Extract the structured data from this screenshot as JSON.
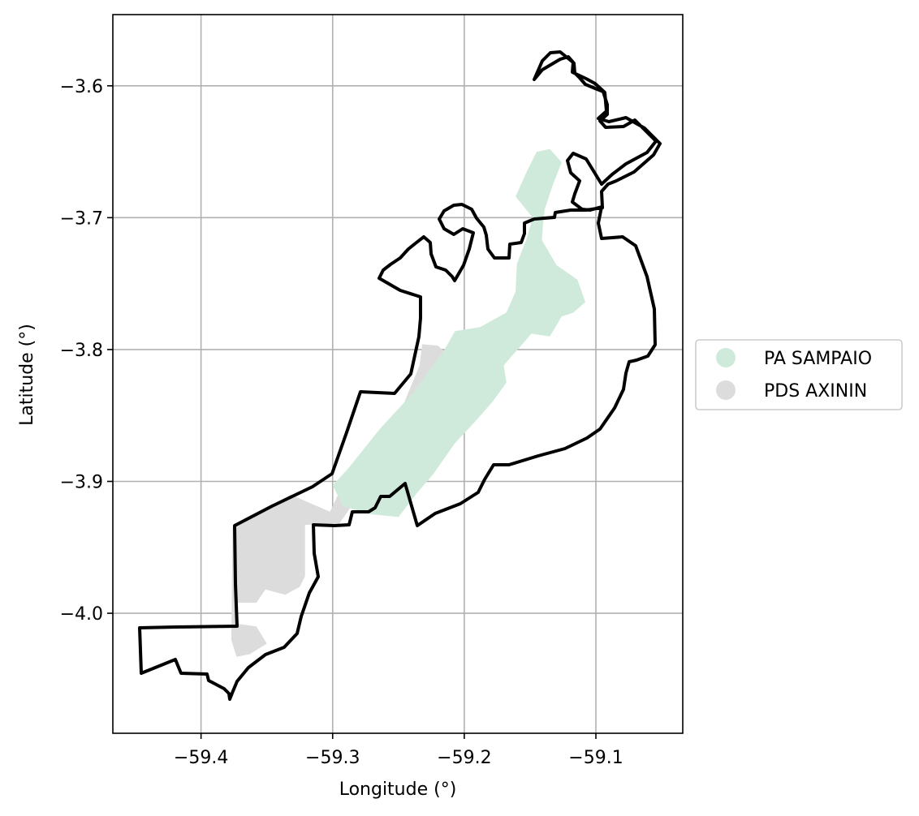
{
  "chart_data": {
    "type": "map",
    "xlabel": "Longitude (°)",
    "ylabel": "Latitude (°)",
    "xlim": [
      -59.467,
      -59.034
    ],
    "ylim": [
      -4.091,
      -3.546
    ],
    "x_ticks": [
      -59.4,
      -59.3,
      -59.2,
      -59.1
    ],
    "y_ticks": [
      -3.6,
      -3.7,
      -3.8,
      -3.9,
      -4.0
    ],
    "x_tick_labels": [
      "−59.4",
      "−59.3",
      "−59.2",
      "−59.1"
    ],
    "y_tick_labels": [
      "−3.6",
      "−3.7",
      "−3.8",
      "−3.9",
      "−4.0"
    ],
    "grid": true,
    "legend_position": "center-right, outside plot",
    "legend": [
      {
        "label": "PA SAMPAIO",
        "color": "#cfeadb"
      },
      {
        "label": "PDS AXININ",
        "color": "#dcdcdc"
      }
    ],
    "areas": [
      {
        "name": "PDS AXININ",
        "color": "#dcdcdc",
        "coords": [
          [
            -59.302,
            -3.923
          ],
          [
            -59.293,
            -3.904
          ],
          [
            -59.262,
            -3.872
          ],
          [
            -59.248,
            -3.846
          ],
          [
            -59.234,
            -3.812
          ],
          [
            -59.232,
            -3.796
          ],
          [
            -59.22,
            -3.797
          ],
          [
            -59.208,
            -3.808
          ],
          [
            -59.295,
            -3.932
          ],
          [
            -59.321,
            -3.933
          ],
          [
            -59.321,
            -3.972
          ],
          [
            -59.325,
            -3.98
          ],
          [
            -59.336,
            -3.986
          ],
          [
            -59.351,
            -3.982
          ],
          [
            -59.358,
            -3.992
          ],
          [
            -59.372,
            -3.992
          ],
          [
            -59.372,
            -4.008
          ],
          [
            -59.358,
            -4.01
          ],
          [
            -59.35,
            -4.023
          ],
          [
            -59.363,
            -4.031
          ],
          [
            -59.373,
            -4.033
          ],
          [
            -59.377,
            -4.02
          ],
          [
            -59.376,
            -3.935
          ],
          [
            -59.332,
            -3.91
          ]
        ]
      },
      {
        "name": "PA SAMPAIO",
        "color": "#cfeadb",
        "coords": [
          [
            -59.153,
            -3.666
          ],
          [
            -59.145,
            -3.65
          ],
          [
            -59.135,
            -3.648
          ],
          [
            -59.126,
            -3.658
          ],
          [
            -59.133,
            -3.676
          ],
          [
            -59.139,
            -3.694
          ],
          [
            -59.14,
            -3.704
          ],
          [
            -59.141,
            -3.717
          ],
          [
            -59.13,
            -3.736
          ],
          [
            -59.114,
            -3.747
          ],
          [
            -59.108,
            -3.764
          ],
          [
            -59.117,
            -3.772
          ],
          [
            -59.126,
            -3.775
          ],
          [
            -59.135,
            -3.79
          ],
          [
            -59.149,
            -3.788
          ],
          [
            -59.17,
            -3.812
          ],
          [
            -59.168,
            -3.825
          ],
          [
            -59.178,
            -3.839
          ],
          [
            -59.192,
            -3.855
          ],
          [
            -59.207,
            -3.871
          ],
          [
            -59.224,
            -3.895
          ],
          [
            -59.237,
            -3.91
          ],
          [
            -59.25,
            -3.927
          ],
          [
            -59.27,
            -3.925
          ],
          [
            -59.292,
            -3.919
          ],
          [
            -59.3,
            -3.903
          ],
          [
            -59.288,
            -3.89
          ],
          [
            -59.264,
            -3.86
          ],
          [
            -59.239,
            -3.833
          ],
          [
            -59.215,
            -3.8
          ],
          [
            -59.207,
            -3.786
          ],
          [
            -59.188,
            -3.783
          ],
          [
            -59.168,
            -3.772
          ],
          [
            -59.161,
            -3.756
          ],
          [
            -59.16,
            -3.735
          ],
          [
            -59.153,
            -3.717
          ],
          [
            -59.148,
            -3.7
          ],
          [
            -59.161,
            -3.684
          ]
        ]
      }
    ],
    "outline_coords": [
      [
        -59.397,
        -4.028
      ],
      [
        -59.444,
        -4.024
      ],
      [
        -59.447,
        -4.011
      ],
      [
        -59.402,
        -4.019
      ],
      [
        -59.379,
        -4.016
      ],
      [
        -59.378,
        -3.944
      ],
      [
        -59.377,
        -3.929
      ],
      [
        -59.332,
        -3.91
      ],
      [
        -59.303,
        -3.895
      ],
      [
        -59.295,
        -3.867
      ],
      [
        -59.283,
        -3.832
      ],
      [
        -59.258,
        -3.833
      ],
      [
        -59.244,
        -3.819
      ],
      [
        -59.233,
        -3.796
      ],
      [
        -59.235,
        -3.766
      ],
      [
        -59.271,
        -3.739
      ],
      [
        -59.272,
        -3.724
      ],
      [
        -59.262,
        -3.722
      ],
      [
        -59.249,
        -3.712
      ],
      [
        -59.237,
        -3.701
      ],
      [
        -59.228,
        -3.702
      ],
      [
        -59.222,
        -3.713
      ],
      [
        -59.214,
        -3.714
      ],
      [
        -59.207,
        -3.722
      ],
      [
        -59.201,
        -3.742
      ],
      [
        -59.181,
        -3.706
      ],
      [
        -59.17,
        -3.707
      ],
      [
        -59.16,
        -3.732
      ],
      [
        -59.157,
        -3.724
      ],
      [
        -59.156,
        -3.718
      ],
      [
        -59.148,
        -3.71
      ],
      [
        -59.158,
        -3.697
      ],
      [
        -59.152,
        -3.694
      ],
      [
        -59.136,
        -3.692
      ],
      [
        -59.116,
        -3.693
      ],
      [
        -59.1,
        -3.692
      ],
      [
        -59.095,
        -3.7
      ],
      [
        -59.081,
        -3.72
      ],
      [
        -59.069,
        -3.739
      ],
      [
        -59.058,
        -3.767
      ],
      [
        -59.058,
        -3.8
      ],
      [
        -59.063,
        -3.824
      ],
      [
        -59.074,
        -3.857
      ],
      [
        -59.082,
        -3.862
      ],
      [
        -59.091,
        -3.866
      ],
      [
        -59.11,
        -3.879
      ],
      [
        -59.133,
        -3.887
      ],
      [
        -59.152,
        -3.889
      ],
      [
        -59.167,
        -3.891
      ],
      [
        -59.177,
        -3.906
      ],
      [
        -59.2,
        -3.909
      ],
      [
        -59.226,
        -3.918
      ],
      [
        -59.242,
        -3.924
      ],
      [
        -59.256,
        -3.924
      ],
      [
        -59.264,
        -3.918
      ],
      [
        -59.269,
        -3.925
      ],
      [
        -59.278,
        -3.927
      ],
      [
        -59.294,
        -3.933
      ],
      [
        -59.316,
        -3.934
      ],
      [
        -59.32,
        -3.947
      ],
      [
        -59.323,
        -3.96
      ],
      [
        -59.335,
        -3.985
      ],
      [
        -59.338,
        -4.006
      ],
      [
        -59.343,
        -4.022
      ],
      [
        -59.355,
        -4.034
      ],
      [
        -59.366,
        -4.039
      ],
      [
        -59.373,
        -4.048
      ],
      [
        -59.38,
        -4.061
      ],
      [
        -59.387,
        -4.064
      ],
      [
        -59.393,
        -4.06
      ],
      [
        -59.397,
        -4.054
      ],
      [
        -59.398,
        -4.042
      ]
    ]
  }
}
